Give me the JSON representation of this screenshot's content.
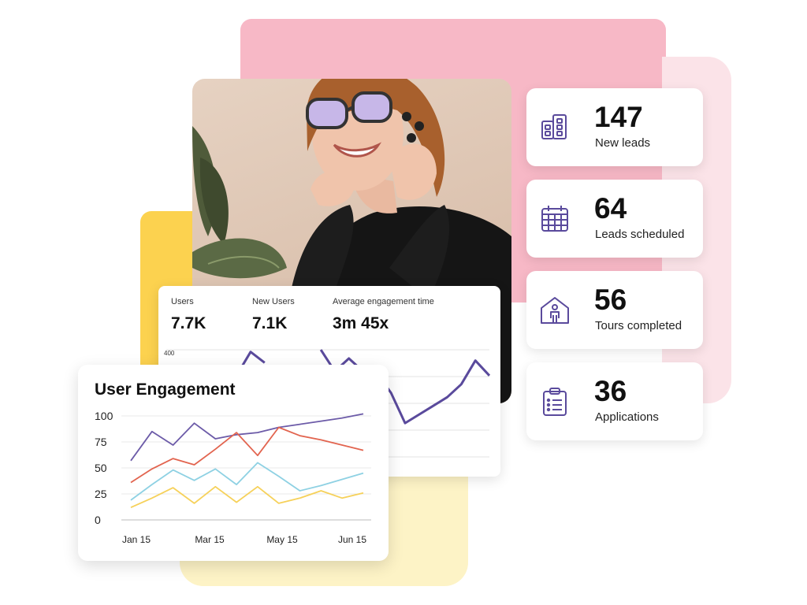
{
  "stats": [
    {
      "value": "147",
      "label": "New leads",
      "icon": "building-icon"
    },
    {
      "value": "64",
      "label": "Leads scheduled",
      "icon": "calendar-icon"
    },
    {
      "value": "56",
      "label": "Tours completed",
      "icon": "house-person-icon"
    },
    {
      "value": "36",
      "label": "Applications",
      "icon": "clipboard-icon"
    }
  ],
  "analytics": {
    "metrics": [
      {
        "label": "Users",
        "value": "7.7K"
      },
      {
        "label": "New Users",
        "value": "7.1K"
      },
      {
        "label": "Average engagement time",
        "value": "3m 45x"
      }
    ],
    "y_tick": "400"
  },
  "colors": {
    "accent": "#5a4a9c",
    "pink": "#f7b8c6",
    "yellow": "#fcd24f"
  },
  "chart_data": [
    {
      "type": "line",
      "title": "",
      "ylim": [
        0,
        400
      ],
      "yticks": [
        "400"
      ],
      "series": [
        {
          "color": "#5a4a9c",
          "values": [
            null,
            null,
            null,
            null,
            350,
            340,
            395,
            370,
            null,
            null,
            null,
            400,
            350,
            380,
            350,
            345,
            300,
            230,
            250,
            270,
            290,
            320,
            375,
            340
          ]
        }
      ]
    },
    {
      "type": "line",
      "title": "User Engagement",
      "xlabel": "",
      "ylabel": "",
      "ylim": [
        0,
        100
      ],
      "yticks": [
        0,
        25,
        50,
        75,
        100
      ],
      "x_tick_labels": [
        "Jan 15",
        "Mar 15",
        "May 15",
        "Jun 15"
      ],
      "series": [
        {
          "color": "#6c5ba8",
          "values": [
            57,
            85,
            72,
            93,
            78,
            82,
            84,
            89,
            92,
            95,
            98,
            102
          ]
        },
        {
          "color": "#e2644f",
          "values": [
            36,
            49,
            59,
            53,
            68,
            84,
            62,
            89,
            81,
            77,
            72,
            67
          ]
        },
        {
          "color": "#8ed1e3",
          "values": [
            19,
            34,
            48,
            38,
            49,
            34,
            55,
            42,
            28,
            33,
            39,
            45
          ]
        },
        {
          "color": "#f6d15a",
          "values": [
            12,
            21,
            31,
            16,
            32,
            17,
            32,
            16,
            21,
            28,
            21,
            26
          ]
        }
      ]
    }
  ]
}
